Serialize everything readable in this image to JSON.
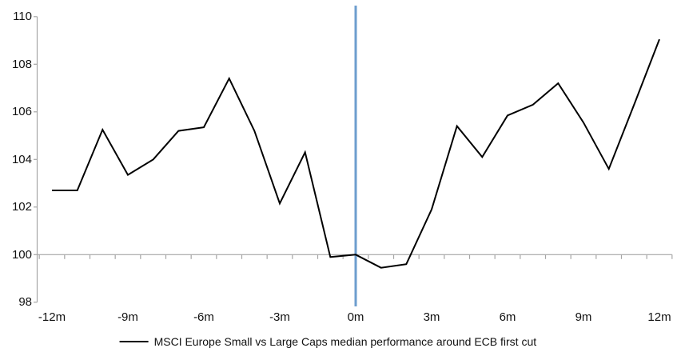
{
  "chart_data": {
    "type": "line",
    "title": "",
    "x": [
      -12,
      -11,
      -10,
      -9,
      -8,
      -7,
      -6,
      -5,
      -4,
      -3,
      -2,
      -1,
      0,
      1,
      2,
      3,
      4,
      5,
      6,
      7,
      8,
      9,
      10,
      11,
      12
    ],
    "series": [
      {
        "name": "MSCI Europe Small vs Large Caps median performance around ECB first cut",
        "color": "#000000",
        "values": [
          102.7,
          102.7,
          105.25,
          103.35,
          104.0,
          105.2,
          105.35,
          107.4,
          105.2,
          102.15,
          104.3,
          99.9,
          100.0,
          99.45,
          99.6,
          101.9,
          105.4,
          104.1,
          105.85,
          106.3,
          107.2,
          105.55,
          103.6,
          106.3,
          109.05
        ]
      }
    ],
    "x_tick_labels": [
      "-12m",
      "-9m",
      "-6m",
      "-3m",
      "0m",
      "3m",
      "6m",
      "9m",
      "12m"
    ],
    "x_tick_values": [
      -12,
      -9,
      -6,
      -3,
      0,
      3,
      6,
      9,
      12
    ],
    "y_tick_labels": [
      "98",
      "100",
      "102",
      "104",
      "106",
      "108",
      "110"
    ],
    "y_tick_values": [
      98,
      100,
      102,
      104,
      106,
      108,
      110
    ],
    "ylim": [
      98,
      110
    ],
    "xlim": [
      -12.5,
      12.5
    ],
    "axis_cross_y": 100,
    "event_line_x": 0,
    "grid": "baseline-only",
    "legend_position": "bottom-center"
  },
  "legend": {
    "label": "MSCI Europe Small vs Large Caps median performance around ECB first cut"
  },
  "colors": {
    "series": "#000000",
    "event_line": "#6D9ECE",
    "axis": "#A6A6A6",
    "text": "#111111",
    "background": "#FFFFFF"
  }
}
